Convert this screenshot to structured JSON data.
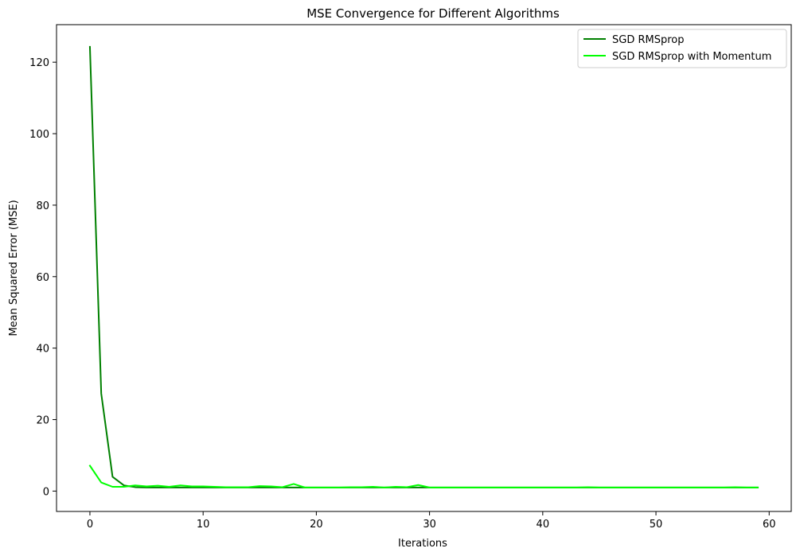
{
  "chart_data": {
    "type": "line",
    "title": "MSE Convergence for Different Algorithms",
    "xlabel": "Iterations",
    "ylabel": "Mean Squared Error (MSE)",
    "xlim": [
      -2.95,
      61.95
    ],
    "ylim": [
      -5.7,
      130.5
    ],
    "xticks": [
      0,
      10,
      20,
      30,
      40,
      50,
      60
    ],
    "yticks": [
      0,
      20,
      40,
      60,
      80,
      100,
      120
    ],
    "grid": false,
    "legend_position": "top-right",
    "x": [
      0,
      1,
      2,
      3,
      4,
      5,
      6,
      7,
      8,
      9,
      10,
      11,
      12,
      13,
      14,
      15,
      16,
      17,
      18,
      19,
      20,
      21,
      22,
      23,
      24,
      25,
      26,
      27,
      28,
      29,
      30,
      31,
      32,
      33,
      34,
      35,
      36,
      37,
      38,
      39,
      40,
      41,
      42,
      43,
      44,
      45,
      46,
      47,
      48,
      49,
      50,
      51,
      52,
      53,
      54,
      55,
      56,
      57,
      58,
      59
    ],
    "series": [
      {
        "name": "SGD RMSprop",
        "color": "#008000",
        "values": [
          124.3,
          27.3,
          4.0,
          1.6,
          1.1,
          1.0,
          1.0,
          1.0,
          1.0,
          1.0,
          1.0,
          1.0,
          1.0,
          1.0,
          1.0,
          1.0,
          1.0,
          1.0,
          1.0,
          1.0,
          1.0,
          1.0,
          1.0,
          1.0,
          1.0,
          1.0,
          1.0,
          1.0,
          1.0,
          1.0,
          1.0,
          1.0,
          1.0,
          1.0,
          1.0,
          1.0,
          1.0,
          1.0,
          1.0,
          1.0,
          1.0,
          1.0,
          1.0,
          1.0,
          1.0,
          1.0,
          1.0,
          1.0,
          1.0,
          1.0,
          1.0,
          1.0,
          1.0,
          1.0,
          1.0,
          1.0,
          1.0,
          1.0,
          1.0,
          1.0
        ]
      },
      {
        "name": "SGD RMSprop with Momentum",
        "color": "#00ff00",
        "values": [
          7.1,
          2.4,
          1.2,
          1.2,
          1.6,
          1.3,
          1.5,
          1.2,
          1.6,
          1.3,
          1.3,
          1.2,
          1.1,
          1.1,
          1.1,
          1.4,
          1.3,
          1.1,
          2.0,
          1.0,
          1.0,
          1.0,
          1.0,
          1.1,
          1.1,
          1.2,
          1.0,
          1.2,
          1.1,
          1.7,
          1.0,
          1.0,
          1.0,
          1.0,
          1.0,
          1.0,
          1.0,
          1.0,
          1.0,
          1.0,
          1.0,
          1.0,
          1.0,
          1.0,
          1.1,
          1.0,
          1.0,
          1.0,
          1.0,
          1.0,
          1.0,
          1.0,
          1.0,
          1.0,
          1.0,
          1.0,
          1.0,
          1.1,
          1.0,
          1.0
        ]
      }
    ]
  }
}
